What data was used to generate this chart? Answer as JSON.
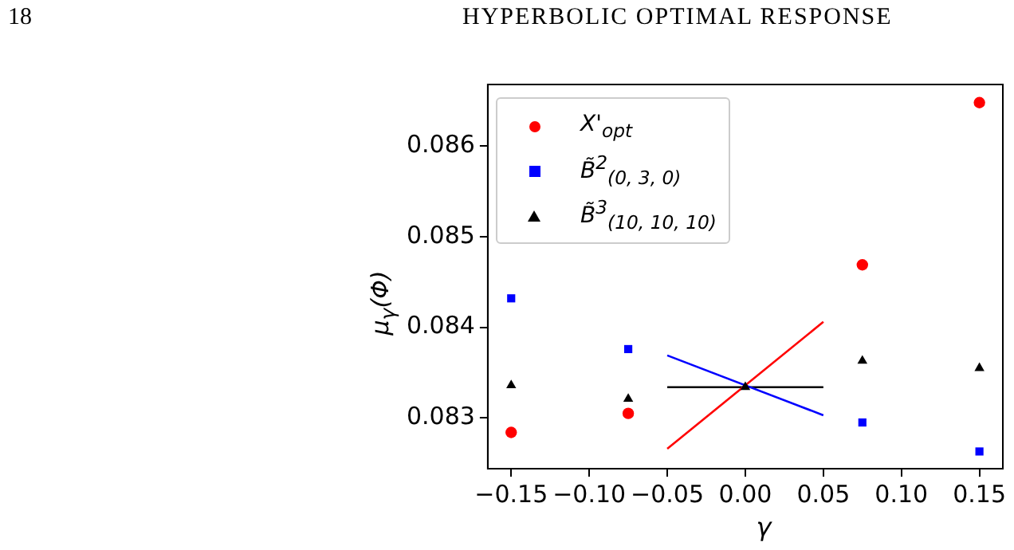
{
  "chart_data": {
    "type": "scatter",
    "annotations": [
      "18",
      "HYPERBOLIC OPTIMAL RESPONSE"
    ],
    "xlabel": "γ",
    "ylabel": "μ$_{γ}$(Φ)",
    "xlim": [
      -0.165,
      0.165
    ],
    "xticks": [
      {
        "value": -0.15,
        "label": "−0.15"
      },
      {
        "value": -0.1,
        "label": "−0.10"
      },
      {
        "value": -0.05,
        "label": "−0.05"
      },
      {
        "value": 0,
        "label": "0.00"
      },
      {
        "value": 0.05,
        "label": "0.05"
      },
      {
        "value": 0.1,
        "label": "0.10"
      },
      {
        "value": 0.15,
        "label": "0.15"
      }
    ],
    "ylim": [
      0.08244,
      0.08668
    ],
    "yticks": [
      {
        "value": 0.083,
        "label": "0.083"
      },
      {
        "value": 0.084,
        "label": "0.084"
      },
      {
        "value": 0.085,
        "label": "0.085"
      },
      {
        "value": 0.086,
        "label": "0.086"
      }
    ],
    "grid": false,
    "legend": "top left",
    "series": [
      {
        "name": "X'$_{opt}$",
        "type": "scatter",
        "marker": "circle",
        "color": "#ff0000",
        "x": [
          -0.15,
          -0.075,
          0,
          0.075,
          0.15
        ],
        "values": [
          0.08284,
          0.08305,
          null,
          0.08469,
          0.08648
        ]
      },
      {
        "name": "B̃$^{2}$$_{(0, 3, 0)}$",
        "type": "scatter",
        "marker": "square",
        "color": "#0000ff",
        "x": [
          -0.15,
          -0.075,
          0,
          0.075,
          0.15
        ],
        "values": [
          0.08432,
          0.08376,
          null,
          0.08295,
          0.08263
        ]
      },
      {
        "name": "B̃$^{3}$$_{(10, 10, 10)}$",
        "type": "scatter",
        "marker": "triangle",
        "color": "#000000",
        "x": [
          -0.15,
          -0.075,
          0,
          0.075,
          0.15
        ],
        "values": [
          0.08336,
          0.08321,
          0.08334,
          0.08363,
          0.08355
        ]
      },
      {
        "type": "line",
        "marker": "none",
        "color": "#ff0000",
        "x": [
          -0.05,
          0.05
        ],
        "values": [
          0.08266,
          0.08406
        ]
      },
      {
        "type": "line",
        "marker": "none",
        "color": "#0000ff",
        "x": [
          -0.05,
          0.05
        ],
        "values": [
          0.08369,
          0.08303
        ]
      },
      {
        "type": "line",
        "marker": "none",
        "color": "#000000",
        "x": [
          -0.05,
          0.05
        ],
        "values": [
          0.08334,
          0.08334
        ]
      }
    ]
  }
}
